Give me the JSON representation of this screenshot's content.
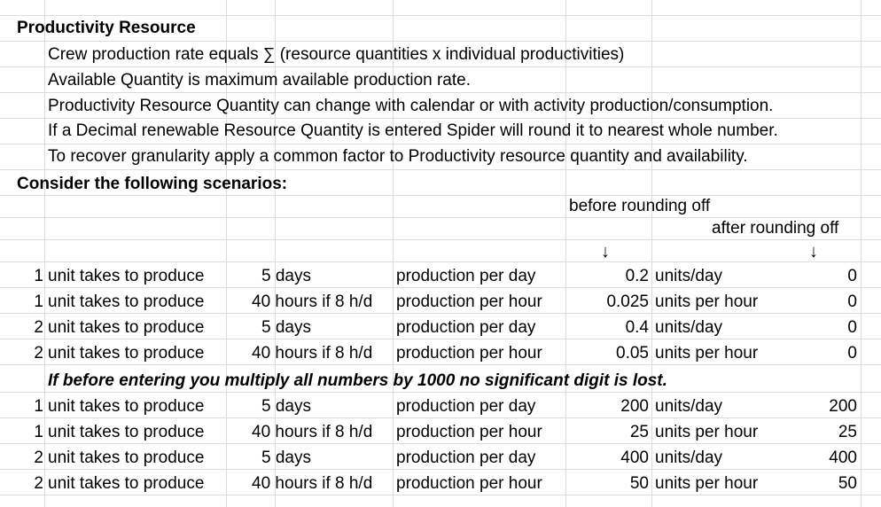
{
  "sheet": {
    "title": "Productivity Resource",
    "notes": [
      "Crew production rate equals ∑ (resource quantities x individual productivities)",
      "Available Quantity is maximum available production rate.",
      "Productivity Resource Quantity can change with calendar or with activity production/consumption.",
      "If a Decimal renewable Resource Quantity is entered Spider will round it to nearest whole number.",
      "To recover granularity apply a common factor to Productivity resource quantity and availability."
    ],
    "scenarios_heading": "Consider the following scenarios:",
    "before_label": "before rounding off",
    "after_label": "after rounding off",
    "arrow_glyph": "↓",
    "table1": [
      {
        "qty": "1",
        "desc": "unit takes to produce",
        "dur": "5 days",
        "prod": "production per day",
        "before": "0.2",
        "unit": "units/day",
        "after": "0"
      },
      {
        "qty": "1",
        "desc": "unit takes to produce",
        "dur": "40 hours if 8 h/d",
        "prod": "production per hour",
        "before": "0.025",
        "unit": "units per hour",
        "after": "0"
      },
      {
        "qty": "2",
        "desc": "unit takes to produce",
        "dur": "5 days",
        "prod": "production per day",
        "before": "0.4",
        "unit": "units/day",
        "after": "0"
      },
      {
        "qty": "2",
        "desc": "unit takes to produce",
        "dur": "40 hours if 8 h/d",
        "prod": "production per hour",
        "before": "0.05",
        "unit": "units per hour",
        "after": "0"
      }
    ],
    "multiply_note": "If before entering you multiply all numbers by 1000 no significant digit is lost.",
    "table2": [
      {
        "qty": "1",
        "desc": "unit takes to produce",
        "dur": "5 days",
        "prod": "production per day",
        "before": "200",
        "unit": "units/day",
        "after": "200"
      },
      {
        "qty": "1",
        "desc": "unit takes to produce",
        "dur": "40 hours if 8 h/d",
        "prod": "production per hour",
        "before": "25",
        "unit": "units per hour",
        "after": "25"
      },
      {
        "qty": "2",
        "desc": "unit takes to produce",
        "dur": "5 days",
        "prod": "production per day",
        "before": "400",
        "unit": "units/day",
        "after": "400"
      },
      {
        "qty": "2",
        "desc": "unit takes to produce",
        "dur": "40 hours if 8 h/d",
        "prod": "production per hour",
        "before": "50",
        "unit": "units per hour",
        "after": "50"
      }
    ]
  }
}
